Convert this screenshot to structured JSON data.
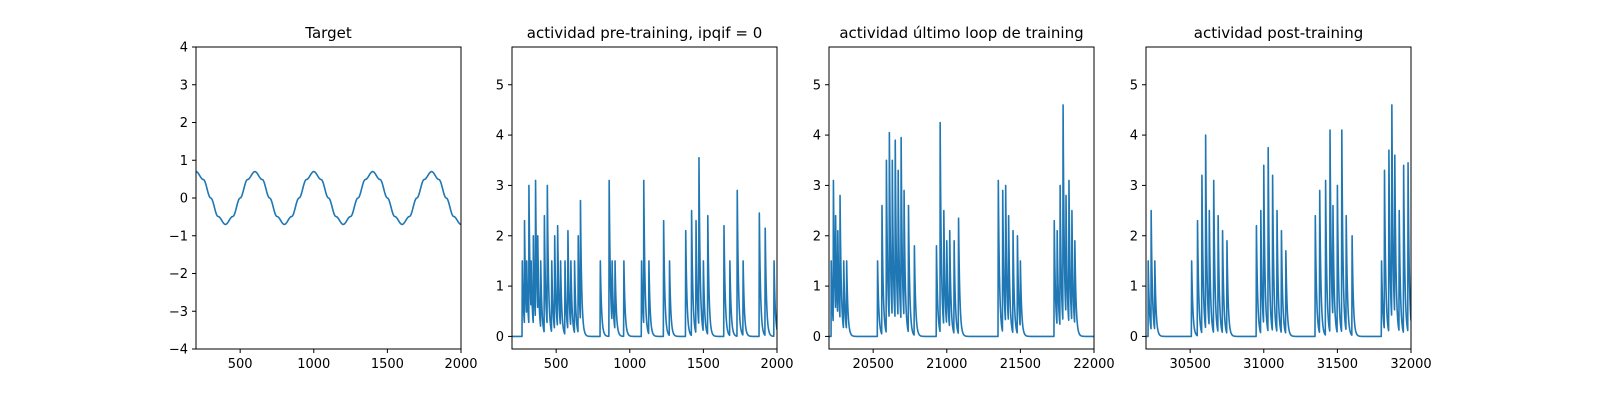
{
  "chart_data": [
    {
      "type": "line",
      "title": "Target",
      "xlabel": "",
      "ylabel": "",
      "xlim": [
        200,
        2000
      ],
      "ylim": [
        -4,
        4
      ],
      "xticks": [
        500,
        1000,
        1500,
        2000
      ],
      "xtick_labels": [
        "500",
        "1000",
        "1500",
        "2000"
      ],
      "yticks": [
        -4,
        -3,
        -2,
        -1,
        0,
        1,
        2,
        3,
        4
      ],
      "ytick_labels": [
        "−4",
        "−3",
        "−2",
        "−1",
        "0",
        "1",
        "2",
        "3",
        "4"
      ],
      "grid": false,
      "series": [
        {
          "color": "#1f77b4",
          "x": [
            200,
            250,
            300,
            350,
            400,
            450,
            500,
            550,
            600,
            650,
            700,
            750,
            800,
            850,
            900,
            950,
            1000,
            1050,
            1100,
            1150,
            1200,
            1250,
            1300,
            1350,
            1400,
            1450,
            1500,
            1550,
            1600,
            1650,
            1700,
            1750,
            1800,
            1850,
            1900,
            1950,
            2000
          ],
          "y": [
            0.7,
            0.49,
            0.0,
            -0.49,
            -0.7,
            -0.49,
            0.0,
            0.49,
            0.7,
            0.49,
            0.0,
            -0.49,
            -0.7,
            -0.49,
            0.0,
            0.49,
            0.7,
            0.49,
            0.0,
            -0.49,
            -0.7,
            -0.49,
            0.0,
            0.49,
            0.7,
            0.49,
            0.0,
            -0.49,
            -0.7,
            -0.49,
            0.0,
            0.49,
            0.7,
            0.49,
            0.0,
            -0.49,
            -0.7
          ]
        }
      ]
    },
    {
      "type": "line",
      "title": "actividad pre-training, ipqif = 0",
      "xlabel": "",
      "ylabel": "",
      "xlim": [
        200,
        2000
      ],
      "ylim": [
        -0.25,
        5.75
      ],
      "xticks": [
        500,
        1000,
        1500,
        2000
      ],
      "xtick_labels": [
        "500",
        "1000",
        "1500",
        "2000"
      ],
      "yticks": [
        0,
        1,
        2,
        3,
        4,
        5
      ],
      "ytick_labels": [
        "0",
        "1",
        "2",
        "3",
        "4",
        "5"
      ],
      "grid": false,
      "series": [
        {
          "color": "#1f77b4",
          "baseline": 0,
          "spikes": [
            [
              270,
              1.5
            ],
            [
              285,
              2.3
            ],
            [
              300,
              1.5
            ],
            [
              315,
              3.0
            ],
            [
              330,
              1.5
            ],
            [
              345,
              2.0
            ],
            [
              360,
              3.1
            ],
            [
              375,
              2.0
            ],
            [
              395,
              1.5
            ],
            [
              420,
              2.4
            ],
            [
              440,
              3.0
            ],
            [
              470,
              1.5
            ],
            [
              490,
              2.0
            ],
            [
              510,
              2.2
            ],
            [
              530,
              1.5
            ],
            [
              560,
              1.5
            ],
            [
              580,
              2.1
            ],
            [
              600,
              1.5
            ],
            [
              625,
              1.5
            ],
            [
              650,
              2.0
            ],
            [
              665,
              2.7
            ],
            [
              800,
              1.5
            ],
            [
              860,
              3.1
            ],
            [
              880,
              1.5
            ],
            [
              900,
              1.5
            ],
            [
              960,
              1.5
            ],
            [
              1080,
              1.5
            ],
            [
              1095,
              3.1
            ],
            [
              1130,
              1.5
            ],
            [
              1230,
              2.3
            ],
            [
              1270,
              1.5
            ],
            [
              1380,
              2.1
            ],
            [
              1420,
              2.5
            ],
            [
              1450,
              2.3
            ],
            [
              1470,
              3.55
            ],
            [
              1500,
              1.5
            ],
            [
              1530,
              2.4
            ],
            [
              1640,
              2.2
            ],
            [
              1680,
              1.5
            ],
            [
              1730,
              2.9
            ],
            [
              1770,
              1.5
            ],
            [
              1880,
              2.45
            ],
            [
              1920,
              2.15
            ],
            [
              1980,
              1.5
            ]
          ]
        }
      ]
    },
    {
      "type": "line",
      "title": "actividad último loop de training",
      "xlabel": "",
      "ylabel": "",
      "xlim": [
        20200,
        22000
      ],
      "ylim": [
        -0.25,
        5.75
      ],
      "xticks": [
        20500,
        21000,
        21500,
        22000
      ],
      "xtick_labels": [
        "20500",
        "21000",
        "21500",
        "22000"
      ],
      "yticks": [
        0,
        1,
        2,
        3,
        4,
        5
      ],
      "ytick_labels": [
        "0",
        "1",
        "2",
        "3",
        "4",
        "5"
      ],
      "grid": false,
      "series": [
        {
          "color": "#1f77b4",
          "baseline": 0,
          "spikes": [
            [
              20215,
              1.5
            ],
            [
              20230,
              3.1
            ],
            [
              20245,
              2.4
            ],
            [
              20260,
              2.1
            ],
            [
              20275,
              2.8
            ],
            [
              20300,
              1.5
            ],
            [
              20320,
              1.5
            ],
            [
              20530,
              1.5
            ],
            [
              20560,
              2.6
            ],
            [
              20590,
              3.5
            ],
            [
              20610,
              4.05
            ],
            [
              20630,
              3.5
            ],
            [
              20650,
              3.9
            ],
            [
              20670,
              3.3
            ],
            [
              20690,
              3.95
            ],
            [
              20710,
              2.9
            ],
            [
              20740,
              2.6
            ],
            [
              20780,
              1.8
            ],
            [
              20930,
              1.8
            ],
            [
              20955,
              4.25
            ],
            [
              20980,
              2.5
            ],
            [
              21000,
              1.9
            ],
            [
              21020,
              2.1
            ],
            [
              21050,
              1.9
            ],
            [
              21080,
              2.35
            ],
            [
              21350,
              3.1
            ],
            [
              21380,
              2.9
            ],
            [
              21400,
              3.0
            ],
            [
              21420,
              2.4
            ],
            [
              21450,
              2.1
            ],
            [
              21480,
              2.0
            ],
            [
              21500,
              1.5
            ],
            [
              21730,
              2.3
            ],
            [
              21750,
              2.1
            ],
            [
              21770,
              3.0
            ],
            [
              21790,
              4.6
            ],
            [
              21810,
              2.8
            ],
            [
              21830,
              3.1
            ],
            [
              21850,
              2.5
            ],
            [
              21870,
              1.9
            ]
          ]
        }
      ]
    },
    {
      "type": "line",
      "title": "actividad post-training",
      "xlabel": "",
      "ylabel": "",
      "xlim": [
        30200,
        32000
      ],
      "ylim": [
        -0.25,
        5.75
      ],
      "xticks": [
        30500,
        31000,
        31500,
        32000
      ],
      "xtick_labels": [
        "30500",
        "31000",
        "31500",
        "32000"
      ],
      "yticks": [
        0,
        1,
        2,
        3,
        4,
        5
      ],
      "ytick_labels": [
        "0",
        "1",
        "2",
        "3",
        "4",
        "5"
      ],
      "grid": false,
      "series": [
        {
          "color": "#1f77b4",
          "baseline": 0,
          "spikes": [
            [
              30215,
              1.5
            ],
            [
              30235,
              2.5
            ],
            [
              30260,
              1.5
            ],
            [
              30510,
              1.5
            ],
            [
              30550,
              2.3
            ],
            [
              30580,
              3.2
            ],
            [
              30605,
              4.0
            ],
            [
              30630,
              2.5
            ],
            [
              30660,
              3.1
            ],
            [
              30690,
              2.4
            ],
            [
              30720,
              2.1
            ],
            [
              30750,
              1.9
            ],
            [
              30950,
              2.2
            ],
            [
              30980,
              2.5
            ],
            [
              31000,
              3.4
            ],
            [
              31030,
              3.75
            ],
            [
              31060,
              3.2
            ],
            [
              31090,
              2.5
            ],
            [
              31120,
              2.1
            ],
            [
              31150,
              1.7
            ],
            [
              31350,
              2.4
            ],
            [
              31380,
              2.9
            ],
            [
              31420,
              3.1
            ],
            [
              31450,
              4.1
            ],
            [
              31470,
              2.6
            ],
            [
              31500,
              3.0
            ],
            [
              31530,
              4.1
            ],
            [
              31560,
              2.4
            ],
            [
              31600,
              2.0
            ],
            [
              31800,
              1.5
            ],
            [
              31820,
              3.3
            ],
            [
              31850,
              3.7
            ],
            [
              31870,
              4.6
            ],
            [
              31890,
              3.6
            ],
            [
              31920,
              2.5
            ],
            [
              31950,
              3.4
            ],
            [
              31980,
              3.45
            ]
          ]
        }
      ]
    }
  ]
}
